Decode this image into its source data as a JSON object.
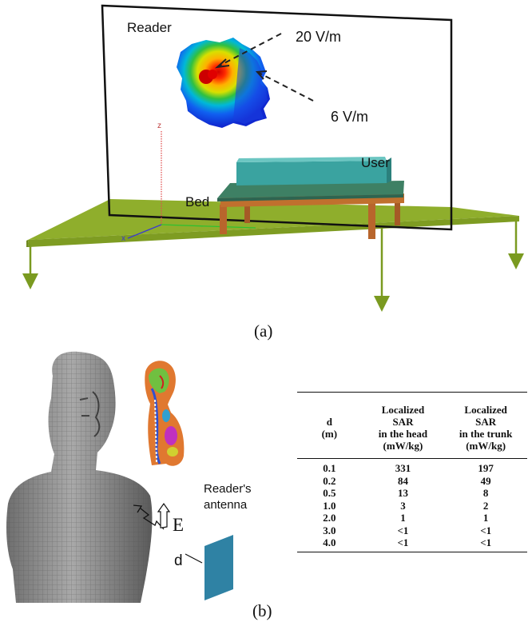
{
  "panel_a": {
    "caption": "(a)",
    "labels": {
      "reader": "Reader",
      "field_high": "20 V/m",
      "field_low": "6 V/m",
      "user": "User",
      "bed": "Bed",
      "axis_z": "z",
      "axis_x": "x"
    }
  },
  "panel_b": {
    "caption": "(b)",
    "labels": {
      "reader_antenna_line1": "Reader's",
      "reader_antenna_line2": "antenna",
      "distance": "d",
      "field": "E"
    },
    "table": {
      "headers": {
        "d_line1": "d",
        "d_line2": "(m)",
        "head_line1": "Localized",
        "head_line2": "SAR",
        "head_line3": "in the head",
        "head_line4": "(mW/kg)",
        "trunk_line1": "Localized",
        "trunk_line2": "SAR",
        "trunk_line3": "in the trunk",
        "trunk_line4": "(mW/kg)"
      },
      "rows": [
        {
          "d": "0.1",
          "head": "331",
          "trunk": "197"
        },
        {
          "d": "0.2",
          "head": "84",
          "trunk": "49"
        },
        {
          "d": "0.5",
          "head": "13",
          "trunk": "8"
        },
        {
          "d": "1.0",
          "head": "3",
          "trunk": "2"
        },
        {
          "d": "2.0",
          "head": "1",
          "trunk": "1"
        },
        {
          "d": "3.0",
          "head": "<1",
          "trunk": "<1"
        },
        {
          "d": "4.0",
          "head": "<1",
          "trunk": "<1"
        }
      ]
    }
  },
  "colors": {
    "ground": "#8fae2c",
    "bed_top": "#3e8064",
    "user_block": "#3aa3a0",
    "bed_leg": "#b8652c",
    "antenna": "#2f82a4",
    "body_gray": "#8a8a8a"
  }
}
